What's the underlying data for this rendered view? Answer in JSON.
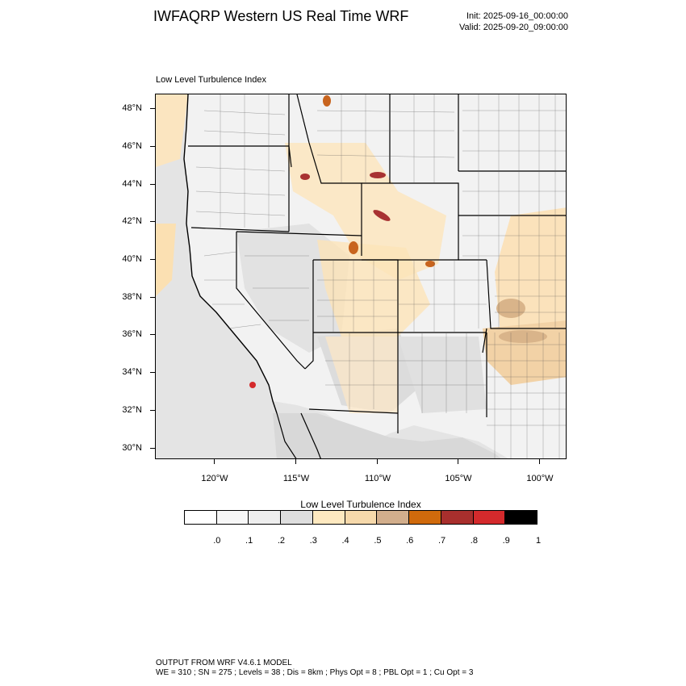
{
  "header": {
    "title": "IWFAQRP Western US Real Time WRF",
    "init": "Init: 2025-09-16_00:00:00",
    "valid": "Valid: 2025-09-20_09:00:00"
  },
  "map": {
    "subtitle": "Low Level Turbulence Index",
    "lat_labels": [
      "48°N",
      "46°N",
      "44°N",
      "42°N",
      "40°N",
      "38°N",
      "36°N",
      "34°N",
      "32°N",
      "30°N"
    ],
    "lon_labels": [
      "120°W",
      "115°W",
      "110°W",
      "105°W",
      "100°W"
    ],
    "colors": {
      "ocean": "#e8e8e8",
      "low": "#f4f4f4",
      "moderate": "#fde4b8",
      "elevated": "#d9b48a",
      "high": "#c8641e",
      "severe": "#a83232"
    }
  },
  "colorbar": {
    "title": "Low Level Turbulence Index",
    "colors": [
      "#ffffff",
      "#f7f7f7",
      "#eeeeee",
      "#dedede",
      "#fee9c0",
      "#f6d9ab",
      "#d2ae8c",
      "#d06a0c",
      "#a82f2d",
      "#d42a2c",
      "#000000"
    ],
    "labels": [
      ".0",
      ".1",
      ".2",
      ".3",
      ".4",
      ".5",
      ".6",
      ".7",
      ".8",
      ".9",
      "1"
    ]
  },
  "footer": {
    "line1": "OUTPUT FROM WRF V4.6.1 MODEL",
    "line2": "WE = 310 ; SN = 275 ; Levels = 38 ; Dis = 8km ; Phys Opt = 8 ; PBL Opt = 1 ; Cu Opt = 3"
  }
}
